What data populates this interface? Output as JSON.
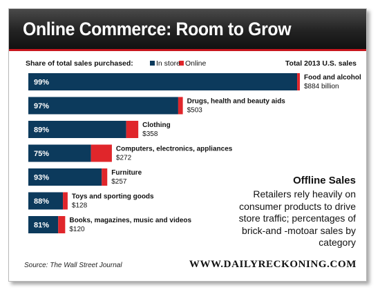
{
  "header": {
    "title": "Online Commerce: Room to Grow"
  },
  "chart_data": {
    "type": "bar",
    "stacked": true,
    "orientation": "horizontal",
    "legend_title": "Share of total sales purchased:",
    "legend_placement": "top-left",
    "series": [
      {
        "name": "In store",
        "color": "#0c3a5c"
      },
      {
        "name": "Online",
        "color": "#e0262b"
      }
    ],
    "value_column_header": "Total 2013 U.S. sales",
    "categories": [
      {
        "label": "Food and alcohol",
        "in_store_pct": 99,
        "in_store_label": "99%",
        "total_sales_billion": 884,
        "total_label": "$884 billion"
      },
      {
        "label": "Drugs, health and beauty aids",
        "in_store_pct": 97,
        "in_store_label": "97%",
        "total_sales_billion": 503,
        "total_label": "$503"
      },
      {
        "label": "Clothing",
        "in_store_pct": 89,
        "in_store_label": "89%",
        "total_sales_billion": 358,
        "total_label": "$358"
      },
      {
        "label": "Computers, electronics, appliances",
        "in_store_pct": 75,
        "in_store_label": "75%",
        "total_sales_billion": 272,
        "total_label": "$272"
      },
      {
        "label": "Furniture",
        "in_store_pct": 93,
        "in_store_label": "93%",
        "total_sales_billion": 257,
        "total_label": "$257"
      },
      {
        "label": "Toys and sporting goods",
        "in_store_pct": 88,
        "in_store_label": "88%",
        "total_sales_billion": 128,
        "total_label": "$128"
      },
      {
        "label": "Books, magazines, music and videos",
        "in_store_pct": 81,
        "in_store_label": "81%",
        "total_sales_billion": 120,
        "total_label": "$120"
      }
    ]
  },
  "annotation": {
    "title": "Offline Sales",
    "body": "Retailers rely heavily on consumer products to drive store traffic; percentages of brick-and -motoar sales by category"
  },
  "source": "Source: The Wall Street Journal",
  "brand": "WWW.DAILYRECKONING.COM",
  "colors": {
    "accent": "#c8171e",
    "header_bg": "#222222"
  }
}
